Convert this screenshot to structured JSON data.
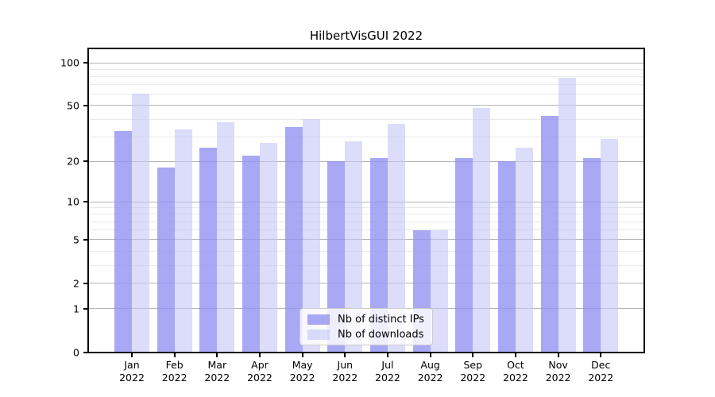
{
  "chart_data": {
    "type": "bar",
    "title": "HilbertVisGUI 2022",
    "categories": [
      "Jan",
      "Feb",
      "Mar",
      "Apr",
      "May",
      "Jun",
      "Jul",
      "Aug",
      "Sep",
      "Oct",
      "Nov",
      "Dec"
    ],
    "category_year": "2022",
    "series": [
      {
        "name": "Nb of distinct IPs",
        "color": "rgba(146,146,243,0.8)",
        "values": [
          33,
          18,
          25,
          22,
          35,
          20,
          21,
          6,
          21,
          20,
          42,
          21
        ]
      },
      {
        "name": "Nb of downloads",
        "color": "rgba(196,196,248,0.6)",
        "values": [
          61,
          34,
          38,
          27,
          40,
          28,
          37,
          6,
          48,
          25,
          78,
          29
        ]
      }
    ],
    "xlabel": "",
    "ylabel": "",
    "y_scale": "log10(value+1)",
    "y_tick_values": [
      0,
      1,
      2,
      5,
      10,
      20,
      50,
      100
    ],
    "y_minor_gridline_values": [
      3,
      4,
      6,
      7,
      8,
      9,
      30,
      40,
      60,
      70,
      80,
      90
    ],
    "ylim": [
      0,
      127
    ],
    "grid": "on",
    "legend_position": "lower center",
    "colors": {
      "major_gridline": "#b4b4b4",
      "minor_gridline": "#e9e9e9",
      "axis": "#000000",
      "background": "#ffffff"
    }
  }
}
